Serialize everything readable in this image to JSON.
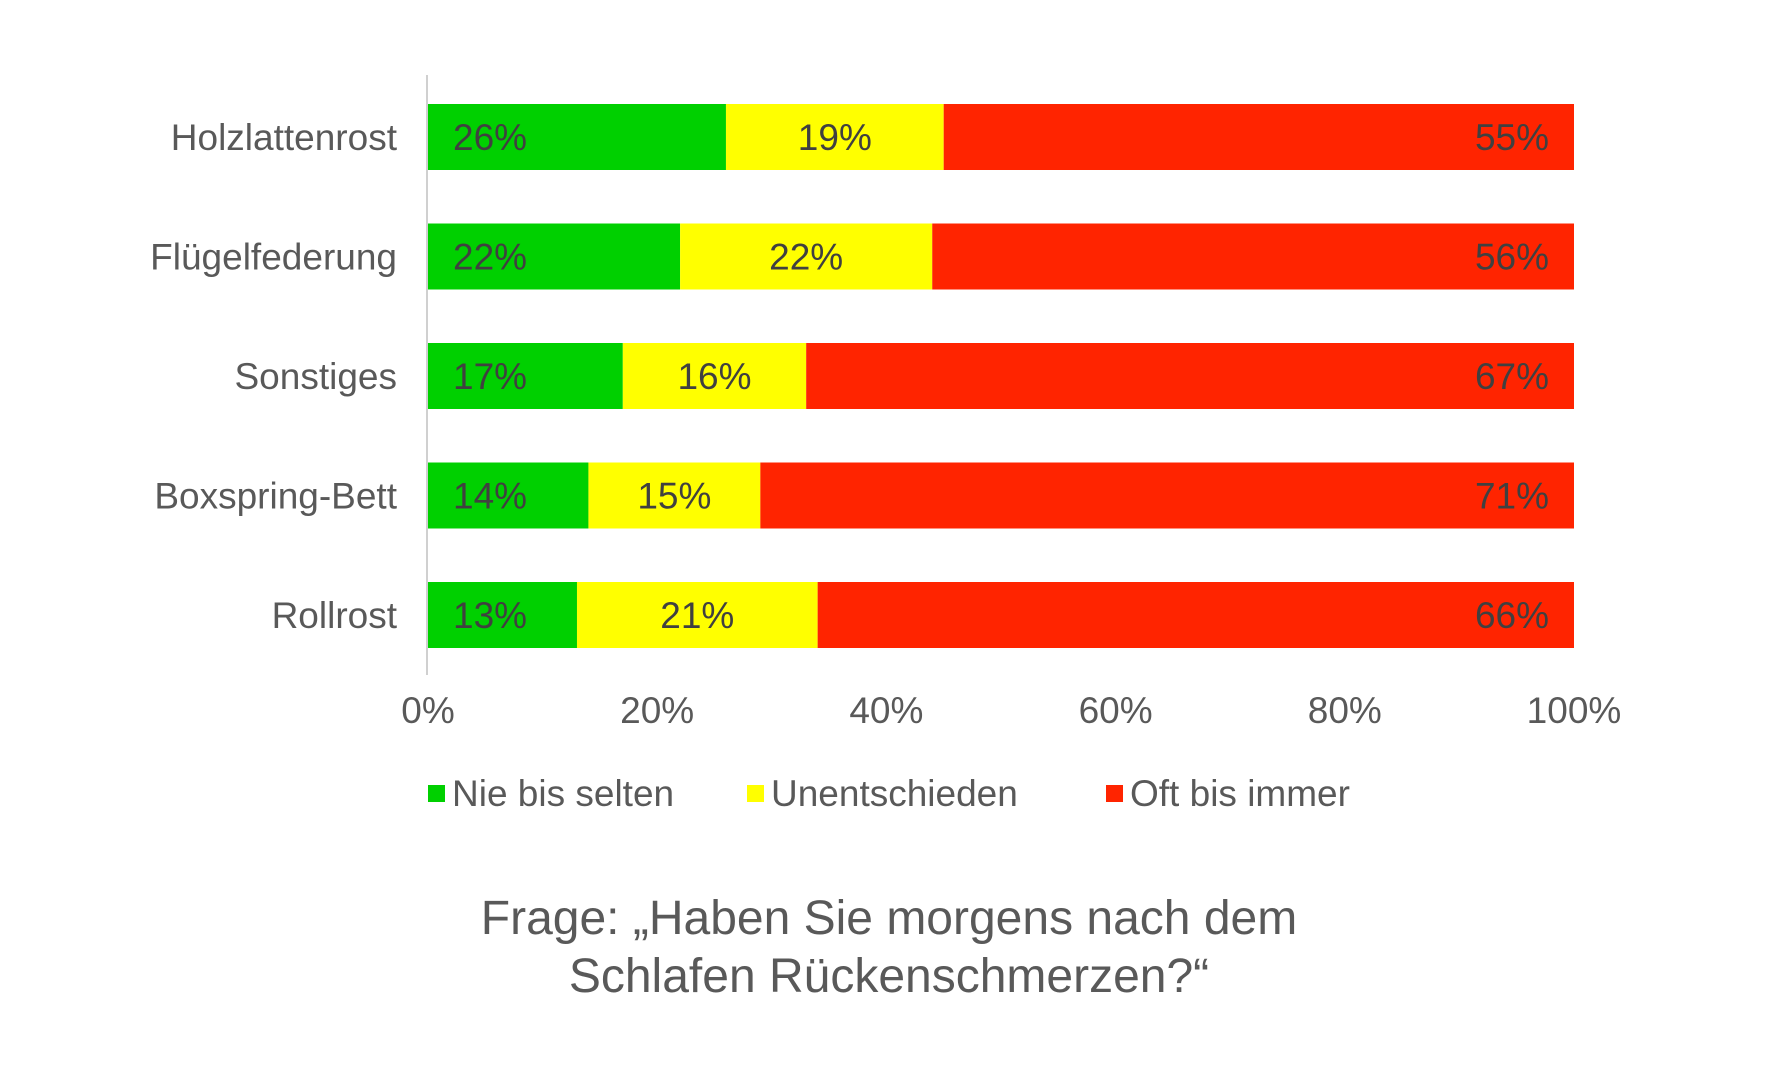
{
  "chart_data": {
    "type": "bar",
    "orientation": "horizontal",
    "stacked": true,
    "categories": [
      "Holzlattenrost",
      "Flügelfederung",
      "Sonstiges",
      "Boxspring-Bett",
      "Rollrost"
    ],
    "series": [
      {
        "name": "Nie bis selten",
        "color": "#00d000",
        "values": [
          26,
          22,
          17,
          14,
          13
        ],
        "labels": [
          "26%",
          "22%",
          "17%",
          "14%",
          "13%"
        ]
      },
      {
        "name": "Unentschieden",
        "color": "#ffff00",
        "values": [
          19,
          22,
          16,
          15,
          21
        ],
        "labels": [
          "19%",
          "22%",
          "16%",
          "15%",
          "21%"
        ]
      },
      {
        "name": "Oft bis immer",
        "color": "#ff2400",
        "values": [
          55,
          56,
          67,
          71,
          66
        ],
        "labels": [
          "55%",
          "56%",
          "67%",
          "71%",
          "66%"
        ]
      }
    ],
    "xlim": [
      0,
      100
    ],
    "xticks": [
      0,
      20,
      40,
      60,
      80,
      100
    ],
    "xtick_labels": [
      "0%",
      "20%",
      "40%",
      "60%",
      "80%",
      "100%"
    ],
    "legend_position": "bottom",
    "grid": false
  },
  "caption": {
    "line1": "Frage: „Haben Sie morgens nach dem",
    "line2": "Schlafen Rückenschmerzen?“"
  }
}
